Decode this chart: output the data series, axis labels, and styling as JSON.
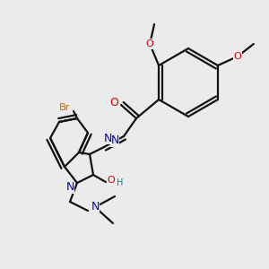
{
  "bg_color": "#ebebeb",
  "bond_color": "#111111",
  "bond_width": 1.6,
  "dbo": 0.012,
  "atoms": {
    "N": "#0000cc",
    "O": "#cc0000",
    "Br": "#cc6600",
    "H": "#008888"
  }
}
